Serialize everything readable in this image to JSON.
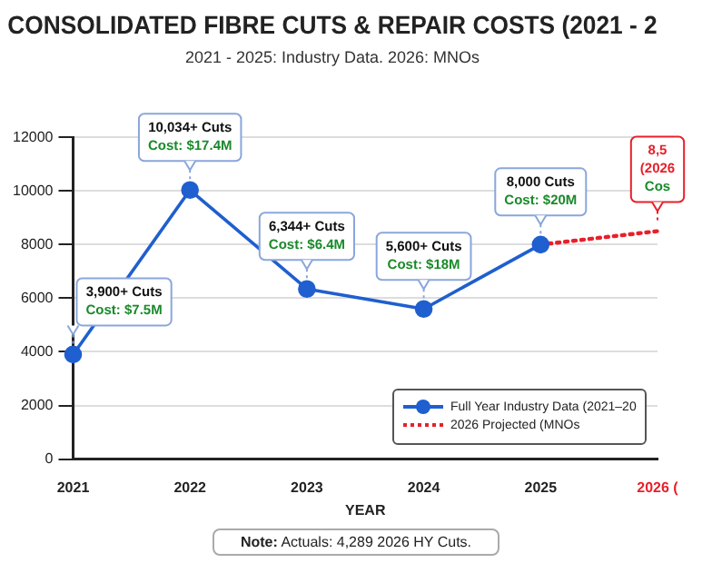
{
  "chart_data": {
    "type": "line",
    "title": "CONSOLIDATED FIBRE CUTS & REPAIR COSTS (2021 - 2",
    "subtitle": "2021 - 2025: Industry Data. 2026: MNOs",
    "xlabel": "YEAR",
    "categories": [
      "2021",
      "2022",
      "2023",
      "2024",
      "2025",
      "2026 ("
    ],
    "series": [
      {
        "name": "Full Year Industry Data (2021–20",
        "color": "#1f5fcf",
        "values": [
          3900,
          10034,
          6344,
          5600,
          8000,
          null
        ],
        "marker": "circle",
        "line_style": "solid",
        "value_labels": [
          "3,900+ Cuts\nCost: $7.5M",
          "10,034+ Cuts\nCost: $17.4M",
          "6,344+ Cuts\nCost: $6.4M",
          "5,600+ Cuts\nCost: $18M",
          "8,000 Cuts\nCost: $20M",
          null
        ]
      },
      {
        "name": "2026 Projected (MNOs",
        "color": "#e8202a",
        "values": [
          null,
          null,
          null,
          null,
          8000,
          8500
        ],
        "marker": "none",
        "line_style": "dotted"
      }
    ],
    "ylim": [
      0,
      12000
    ],
    "yticks": [
      0,
      2000,
      4000,
      6000,
      8000,
      10000,
      12000
    ],
    "grid": "y",
    "legend": "bottom right",
    "annotations": [
      {
        "text": "8,5\n(2026\nCos",
        "x": "2026 (",
        "y": 8500
      },
      "Note: Actuals: 4,289 2026 HY Cuts."
    ]
  }
}
